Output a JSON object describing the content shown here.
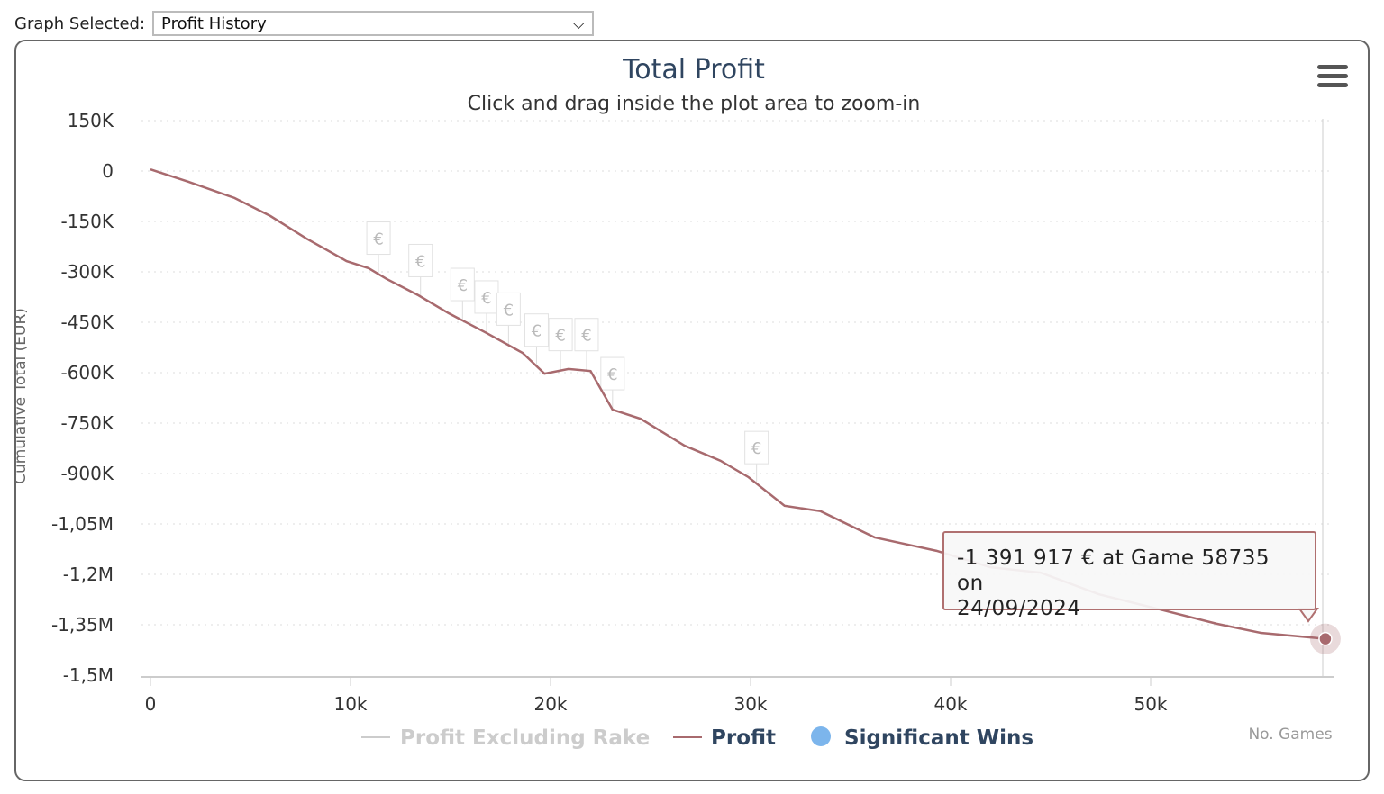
{
  "header": {
    "label": "Graph Selected:",
    "selected": "Profit History"
  },
  "colors": {
    "profit": "#a86a6e",
    "title": "#2f4560",
    "grid": "#ddd",
    "marker": "#7cb5ec"
  },
  "chart_data": {
    "type": "line",
    "title": "Total Profit",
    "subtitle": "Click and drag inside the plot area to zoom-in",
    "ylabel": "Cumulative Total (EUR)",
    "xlabel": "No. Games",
    "ylim": [
      -1500000,
      150000
    ],
    "xlim": [
      0,
      58735
    ],
    "yticks": [
      {
        "v": 150000,
        "l": "150K"
      },
      {
        "v": 0,
        "l": "0"
      },
      {
        "v": -150000,
        "l": "-150K"
      },
      {
        "v": -300000,
        "l": "-300K"
      },
      {
        "v": -450000,
        "l": "-450K"
      },
      {
        "v": -600000,
        "l": "-600K"
      },
      {
        "v": -750000,
        "l": "-750K"
      },
      {
        "v": -900000,
        "l": "-900K"
      },
      {
        "v": -1050000,
        "l": "-1,05M"
      },
      {
        "v": -1200000,
        "l": "-1,2M"
      },
      {
        "v": -1350000,
        "l": "-1,35M"
      },
      {
        "v": -1500000,
        "l": "-1,5M"
      }
    ],
    "xticks": [
      {
        "v": 0,
        "l": "0"
      },
      {
        "v": 10000,
        "l": "10k"
      },
      {
        "v": 20000,
        "l": "20k"
      },
      {
        "v": 30000,
        "l": "30k"
      },
      {
        "v": 40000,
        "l": "40k"
      },
      {
        "v": 50000,
        "l": "50k"
      }
    ],
    "grid": true,
    "legend": {
      "position": "bottom",
      "items": [
        {
          "name": "Profit Excluding Rake",
          "hidden": true
        },
        {
          "name": "Profit",
          "hidden": false
        },
        {
          "name": "Significant Wins",
          "hidden": false
        }
      ]
    },
    "series": [
      {
        "name": "Profit",
        "x": [
          0,
          1900,
          4200,
          6000,
          7800,
          9800,
          10900,
          11800,
          13400,
          14900,
          16800,
          18600,
          19700,
          20900,
          22000,
          23100,
          24500,
          26700,
          28500,
          29900,
          31700,
          33500,
          36200,
          39300,
          42000,
          44500,
          47400,
          50100,
          53300,
          55500,
          58735
        ],
        "y": [
          5000,
          -32000,
          -80000,
          -134000,
          -201000,
          -268000,
          -289000,
          -321000,
          -370000,
          -423000,
          -482000,
          -541000,
          -603000,
          -589000,
          -595000,
          -710000,
          -737000,
          -817000,
          -862000,
          -911000,
          -996000,
          -1012000,
          -1090000,
          -1130000,
          -1179000,
          -1195000,
          -1259000,
          -1299000,
          -1347000,
          -1374000,
          -1391917
        ]
      }
    ],
    "significant_wins": {
      "symbol": "€",
      "x": [
        11400,
        13500,
        15600,
        16800,
        17900,
        19300,
        20500,
        21800,
        23100,
        30300
      ]
    },
    "tooltip": {
      "line1": "-1 391 917 € at Game 58735 on",
      "line2": "24/09/2024",
      "x": 58735,
      "y": -1391917
    }
  }
}
